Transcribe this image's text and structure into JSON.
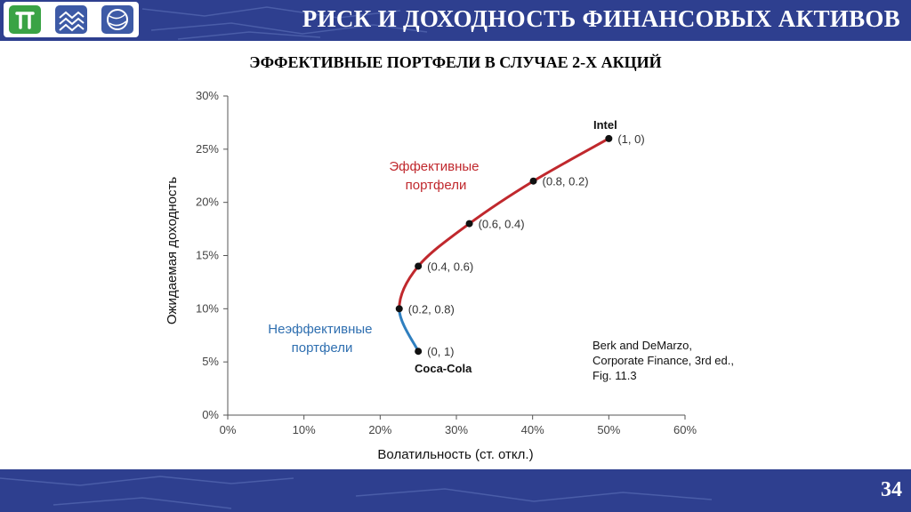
{
  "header": {
    "title": "РИСК И ДОХОДНОСТЬ ФИНАНСОВЫХ АКТИВОВ"
  },
  "slide": {
    "title": "ЭФФЕКТИВНЫЕ ПОРТФЕЛИ В СЛУЧАЕ 2-Х АКЦИЙ",
    "page_number": "34"
  },
  "colors": {
    "header_bg": "#2e3f8f",
    "efficient": "#c0282d",
    "inefficient": "#2f7fbf",
    "logo_green": "#3aa345",
    "logo_blue": "#3d5aa6"
  },
  "chart_data": {
    "type": "line",
    "xlabel": "Волатильность (ст. откл.)",
    "ylabel": "Ожидаемая доходность",
    "xlim": [
      0,
      60
    ],
    "ylim": [
      0,
      30
    ],
    "x_ticks": [
      "0%",
      "10%",
      "20%",
      "30%",
      "40%",
      "50%",
      "60%"
    ],
    "y_ticks": [
      "0%",
      "5%",
      "10%",
      "15%",
      "20%",
      "25%",
      "30%"
    ],
    "points": [
      {
        "label": "(0, 1)",
        "x": 25.0,
        "y": 6.0
      },
      {
        "label": "(0.2, 0.8)",
        "x": 22.5,
        "y": 10.0
      },
      {
        "label": "(0.4, 0.6)",
        "x": 25.0,
        "y": 14.0
      },
      {
        "label": "(0.6, 0.4)",
        "x": 31.7,
        "y": 18.0
      },
      {
        "label": "(0.8, 0.2)",
        "x": 40.1,
        "y": 22.0
      },
      {
        "label": "(1, 0)",
        "x": 50.0,
        "y": 26.0
      }
    ],
    "stock_labels": [
      {
        "name": "Coca-Cola",
        "x": 25.0,
        "y": 6.0
      },
      {
        "name": "Intel",
        "x": 50.0,
        "y": 26.0
      }
    ],
    "series": [
      {
        "name": "Эффективные портфели",
        "label_lines": [
          "Эффективные",
          "портфели"
        ],
        "y_from": 10.0,
        "y_to": 26.0
      },
      {
        "name": "Неэффективные портфели",
        "label_lines": [
          "Неэффективные",
          "портфели"
        ],
        "y_from": 6.0,
        "y_to": 10.0
      }
    ],
    "annotation": [
      "Berk and DeMarzo,",
      "Corporate Finance, 3rd ed.,",
      "Fig. 11.3"
    ]
  }
}
